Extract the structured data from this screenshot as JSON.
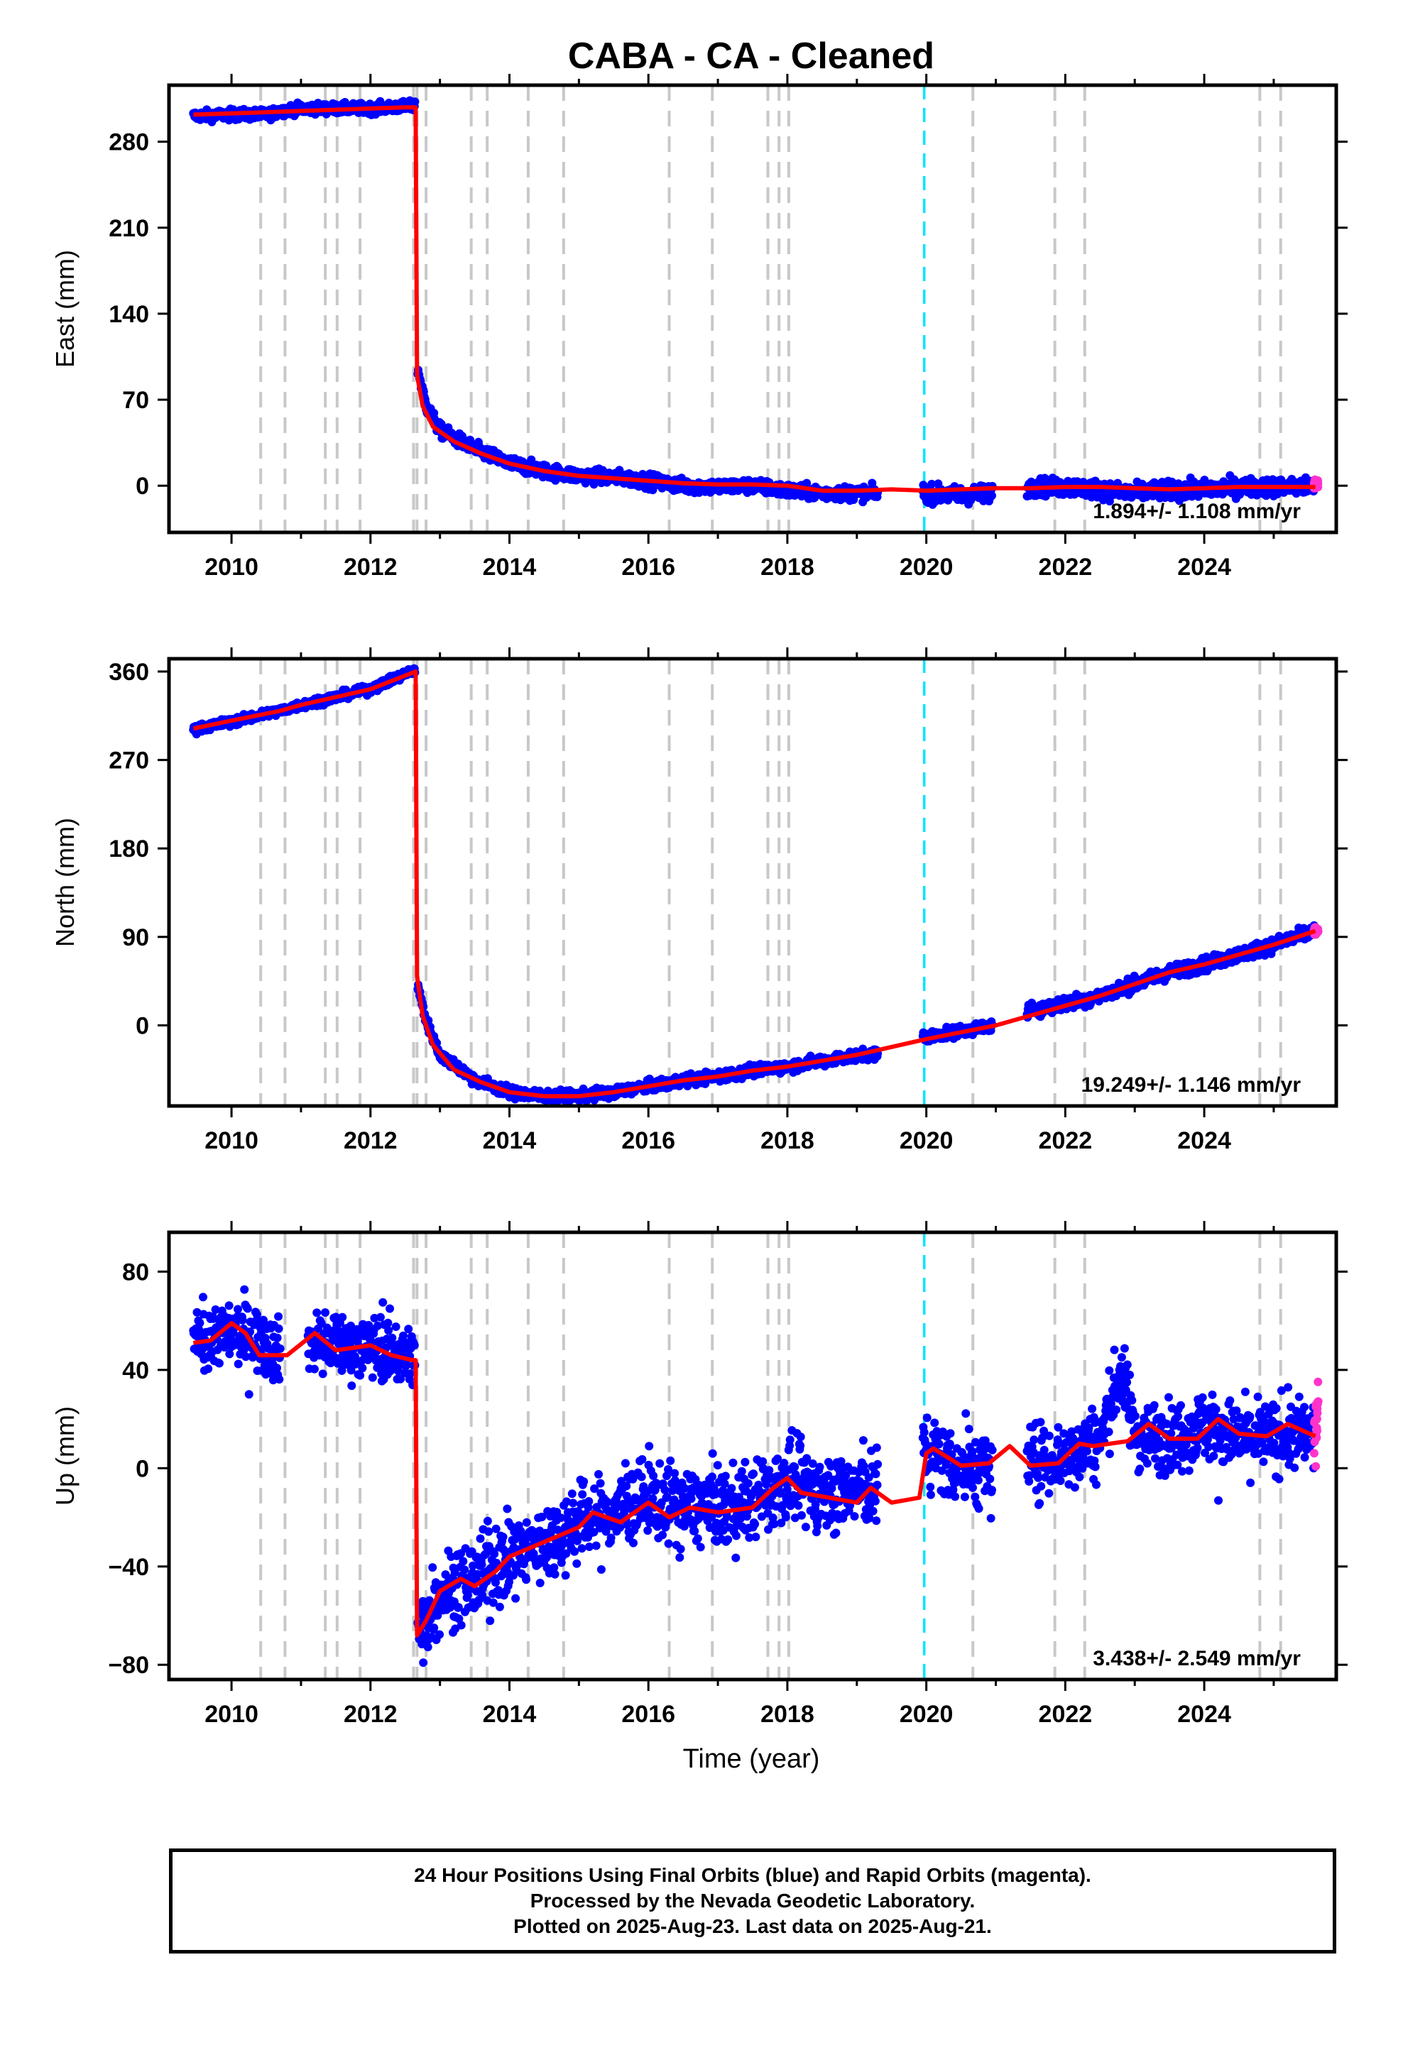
{
  "title": "CABA  - CA - Cleaned",
  "xlabel": "Time (year)",
  "footer": {
    "line1": "24 Hour Positions Using Final Orbits (blue) and Rapid Orbits (magenta).",
    "line2": "Processed by the Nevada Geodetic Laboratory.",
    "line3": "Plotted on 2025-Aug-23. Last data on 2025-Aug-21."
  },
  "colors": {
    "final_orbits": "#0000ff",
    "rapid_orbits": "#ff33cc",
    "model": "#ff0000",
    "event_lines": "#c8c8c8",
    "marker_line": "#00e5ff"
  },
  "chart_data": [
    {
      "type": "scatter",
      "ylabel": "East (mm)",
      "xlim": [
        2009.1,
        2025.9
      ],
      "ylim": [
        -38,
        326
      ],
      "yticks": [
        0,
        70,
        140,
        210,
        280
      ],
      "xticks": [
        2010,
        2012,
        2014,
        2016,
        2018,
        2020,
        2022,
        2024
      ],
      "rate_label": "1.894+/- 1.108 mm/yr",
      "model": {
        "x": [
          2009.45,
          2010.0,
          2010.5,
          2011.0,
          2011.5,
          2012.0,
          2012.5,
          2012.65,
          2012.67,
          2012.75,
          2012.9,
          2013.2,
          2013.6,
          2014.0,
          2014.5,
          2015.0,
          2015.5,
          2016.0,
          2016.5,
          2017.0,
          2017.5,
          2018.0,
          2018.5,
          2019.0,
          2019.5,
          2020.0,
          2020.5,
          2021.0,
          2021.5,
          2022.0,
          2022.5,
          2023.0,
          2023.5,
          2024.0,
          2024.5,
          2025.0,
          2025.6
        ],
        "y": [
          302,
          303,
          304,
          305,
          306,
          307,
          308,
          308,
          90,
          65,
          48,
          36,
          26,
          18,
          12,
          8,
          6,
          4,
          2,
          1,
          1,
          0,
          -4,
          -4,
          -3,
          -4,
          -3,
          -2,
          -2,
          -1,
          -1,
          -2,
          -3,
          -2,
          -1,
          -1,
          -1
        ]
      },
      "final_orbits": {
        "segments": [
          {
            "x0": 2009.45,
            "x1": 2012.64,
            "points": [
              [
                2009.45,
                301
              ],
              [
                2010.0,
                302
              ],
              [
                2010.5,
                302
              ],
              [
                2010.8,
                306
              ],
              [
                2011.1,
                307
              ],
              [
                2011.5,
                307
              ],
              [
                2012.0,
                307
              ],
              [
                2012.64,
                309
              ]
            ],
            "scatter": 3
          },
          {
            "x0": 2012.68,
            "x1": 2019.3,
            "points": [
              [
                2012.68,
                95
              ],
              [
                2012.8,
                65
              ],
              [
                2013.0,
                45
              ],
              [
                2013.5,
                30
              ],
              [
                2014.0,
                18
              ],
              [
                2014.5,
                12
              ],
              [
                2015.0,
                8
              ],
              [
                2015.5,
                7
              ],
              [
                2016.0,
                4
              ],
              [
                2016.5,
                0
              ],
              [
                2017.0,
                -1
              ],
              [
                2017.5,
                0
              ],
              [
                2018.0,
                -4
              ],
              [
                2018.5,
                -6
              ],
              [
                2019.3,
                -6
              ]
            ],
            "scatter": 4
          },
          {
            "x0": 2019.95,
            "x1": 2020.95,
            "points": [
              [
                2019.95,
                -6
              ],
              [
                2020.5,
                -8
              ],
              [
                2020.95,
                -6
              ]
            ],
            "scatter": 5
          },
          {
            "x0": 2021.45,
            "x1": 2025.58,
            "points": [
              [
                2021.45,
                -1
              ],
              [
                2022.0,
                -1
              ],
              [
                2022.5,
                -3
              ],
              [
                2022.9,
                -6
              ],
              [
                2023.3,
                -4
              ],
              [
                2024.0,
                -3
              ],
              [
                2024.5,
                -1
              ],
              [
                2025.58,
                -1
              ]
            ],
            "scatter": 5
          }
        ]
      },
      "rapid_orbits": {
        "x0": 2025.58,
        "x1": 2025.64,
        "points": [
          [
            2025.58,
            0
          ],
          [
            2025.64,
            2
          ]
        ],
        "scatter": 3
      }
    },
    {
      "type": "scatter",
      "ylabel": "North (mm)",
      "xlim": [
        2009.1,
        2025.9
      ],
      "ylim": [
        -82,
        373
      ],
      "yticks": [
        0,
        90,
        180,
        270,
        360
      ],
      "xticks": [
        2010,
        2012,
        2014,
        2016,
        2018,
        2020,
        2022,
        2024
      ],
      "rate_label": "19.249+/- 1.146 mm/yr",
      "model": {
        "x": [
          2009.45,
          2010.0,
          2010.7,
          2011.0,
          2011.5,
          2012.0,
          2012.65,
          2012.67,
          2012.75,
          2012.9,
          2013.2,
          2013.6,
          2014.0,
          2014.5,
          2015.0,
          2015.5,
          2016.0,
          2016.5,
          2017.0,
          2017.5,
          2018.0,
          2018.5,
          2019.0,
          2019.5,
          2020.0,
          2020.5,
          2021.0,
          2021.5,
          2022.0,
          2022.5,
          2023.0,
          2023.5,
          2024.0,
          2024.5,
          2025.0,
          2025.6
        ],
        "y": [
          302,
          310,
          320,
          326,
          334,
          342,
          360,
          50,
          10,
          -20,
          -45,
          -58,
          -68,
          -72,
          -72,
          -68,
          -62,
          -56,
          -52,
          -46,
          -42,
          -36,
          -30,
          -22,
          -14,
          -7,
          0,
          10,
          20,
          30,
          42,
          54,
          62,
          72,
          82,
          96
        ]
      },
      "final_orbits": {
        "segments": [
          {
            "x0": 2009.45,
            "x1": 2012.64,
            "points": [
              [
                2009.45,
                301
              ],
              [
                2010.0,
                309
              ],
              [
                2010.7,
                320
              ],
              [
                2011.0,
                326
              ],
              [
                2011.5,
                334
              ],
              [
                2012.0,
                342
              ],
              [
                2012.64,
                362
              ]
            ],
            "scatter": 3
          },
          {
            "x0": 2012.68,
            "x1": 2019.3,
            "points": [
              [
                2012.68,
                40
              ],
              [
                2012.8,
                5
              ],
              [
                2013.0,
                -30
              ],
              [
                2013.5,
                -55
              ],
              [
                2014.0,
                -68
              ],
              [
                2014.5,
                -72
              ],
              [
                2015.0,
                -72
              ],
              [
                2015.5,
                -68
              ],
              [
                2016.0,
                -62
              ],
              [
                2016.5,
                -56
              ],
              [
                2017.0,
                -52
              ],
              [
                2017.5,
                -46
              ],
              [
                2018.0,
                -42
              ],
              [
                2018.5,
                -36
              ],
              [
                2019.3,
                -28
              ]
            ],
            "scatter": 4
          },
          {
            "x0": 2019.95,
            "x1": 2020.95,
            "points": [
              [
                2019.95,
                -12
              ],
              [
                2020.5,
                -6
              ],
              [
                2020.95,
                0
              ]
            ],
            "scatter": 4
          },
          {
            "x0": 2021.45,
            "x1": 2025.58,
            "points": [
              [
                2021.45,
                15
              ],
              [
                2022.0,
                22
              ],
              [
                2022.5,
                30
              ],
              [
                2023.0,
                42
              ],
              [
                2023.5,
                54
              ],
              [
                2024.0,
                62
              ],
              [
                2024.5,
                72
              ],
              [
                2025.0,
                82
              ],
              [
                2025.58,
                96
              ]
            ],
            "scatter": 5
          }
        ]
      },
      "rapid_orbits": {
        "x0": 2025.58,
        "x1": 2025.64,
        "points": [
          [
            2025.58,
            95
          ],
          [
            2025.64,
            97
          ]
        ],
        "scatter": 3
      }
    },
    {
      "type": "scatter",
      "ylabel": "Up (mm)",
      "xlim": [
        2009.1,
        2025.9
      ],
      "ylim": [
        -86,
        96
      ],
      "yticks": [
        -80,
        -40,
        0,
        40,
        80
      ],
      "xticks": [
        2010,
        2012,
        2014,
        2016,
        2018,
        2020,
        2022,
        2024
      ],
      "rate_label": "3.438+/- 2.549 mm/yr",
      "model": {
        "x": [
          2009.45,
          2009.7,
          2010.0,
          2010.2,
          2010.4,
          2010.8,
          2011.2,
          2011.5,
          2012.0,
          2012.3,
          2012.6,
          2012.65,
          2012.67,
          2012.8,
          2013.0,
          2013.3,
          2013.5,
          2013.8,
          2014.0,
          2014.5,
          2015.0,
          2015.2,
          2015.6,
          2016.0,
          2016.3,
          2016.6,
          2017.0,
          2017.5,
          2017.8,
          2018.0,
          2018.2,
          2018.6,
          2019.0,
          2019.2,
          2019.5,
          2019.9,
          2020.0,
          2020.1,
          2020.5,
          2020.9,
          2021.2,
          2021.5,
          2021.9,
          2022.2,
          2022.4,
          2022.9,
          2023.2,
          2023.5,
          2023.9,
          2024.2,
          2024.5,
          2024.9,
          2025.2,
          2025.6
        ],
        "y": [
          51,
          52,
          59,
          55,
          46,
          46,
          55,
          48,
          50,
          46,
          44,
          44,
          -68,
          -62,
          -50,
          -45,
          -48,
          -42,
          -36,
          -30,
          -24,
          -18,
          -22,
          -14,
          -20,
          -16,
          -18,
          -16,
          -8,
          -4,
          -10,
          -12,
          -14,
          -8,
          -14,
          -12,
          6,
          8,
          1,
          2,
          9,
          1,
          2,
          10,
          9,
          11,
          18,
          12,
          12,
          20,
          14,
          13,
          18,
          13
        ]
      },
      "final_orbits": {
        "segments": [
          {
            "x0": 2009.45,
            "x1": 2010.7,
            "points": [
              [
                2009.45,
                52
              ],
              [
                2009.8,
                55
              ],
              [
                2010.2,
                55
              ],
              [
                2010.7,
                47
              ]
            ],
            "scatter": 9
          },
          {
            "x0": 2011.1,
            "x1": 2012.64,
            "points": [
              [
                2011.1,
                52
              ],
              [
                2011.5,
                50
              ],
              [
                2012.0,
                50
              ],
              [
                2012.64,
                45
              ]
            ],
            "scatter": 9
          },
          {
            "x0": 2012.68,
            "x1": 2019.3,
            "points": [
              [
                2012.68,
                -68
              ],
              [
                2013.0,
                -50
              ],
              [
                2013.5,
                -46
              ],
              [
                2014.0,
                -36
              ],
              [
                2014.5,
                -30
              ],
              [
                2015.0,
                -22
              ],
              [
                2015.5,
                -18
              ],
              [
                2016.0,
                -12
              ],
              [
                2016.5,
                -16
              ],
              [
                2017.0,
                -16
              ],
              [
                2017.5,
                -14
              ],
              [
                2018.0,
                -5
              ],
              [
                2018.5,
                -10
              ],
              [
                2019.3,
                -8
              ]
            ],
            "scatter": 11
          },
          {
            "x0": 2019.95,
            "x1": 2020.95,
            "points": [
              [
                2019.95,
                8
              ],
              [
                2020.5,
                0
              ],
              [
                2020.95,
                0
              ]
            ],
            "scatter": 11
          },
          {
            "x0": 2021.45,
            "x1": 2025.58,
            "points": [
              [
                2021.45,
                2
              ],
              [
                2022.0,
                5
              ],
              [
                2022.5,
                12
              ],
              [
                2022.8,
                40
              ],
              [
                2023.0,
                14
              ],
              [
                2023.5,
                12
              ],
              [
                2024.0,
                18
              ],
              [
                2024.5,
                12
              ],
              [
                2025.58,
                14
              ]
            ],
            "scatter": 10
          }
        ]
      },
      "rapid_orbits": {
        "x0": 2025.58,
        "x1": 2025.64,
        "points": [
          [
            2025.58,
            10
          ],
          [
            2025.64,
            25
          ]
        ],
        "scatter": 7
      }
    }
  ],
  "event_lines_x": [
    2010.42,
    2010.77,
    2011.35,
    2011.52,
    2011.85,
    2012.62,
    2012.67,
    2012.8,
    2013.45,
    2013.68,
    2014.27,
    2014.78,
    2016.3,
    2016.92,
    2017.72,
    2017.88,
    2018.02,
    2020.67,
    2021.85,
    2022.28,
    2024.8,
    2025.1
  ],
  "marker_line_x": 2019.97
}
